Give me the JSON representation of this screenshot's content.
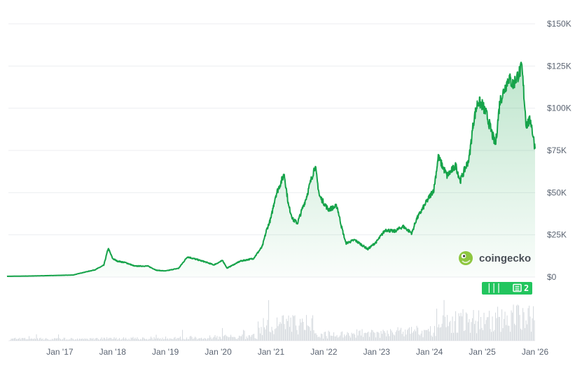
{
  "chart_data": {
    "type": "area",
    "title": "",
    "xlabel": "",
    "ylabel": "",
    "x_tick_labels": [
      "Jan '17",
      "Jan '18",
      "Jan '19",
      "Jan '20",
      "Jan '21",
      "Jan '22",
      "Jan '23",
      "Jan '24",
      "Jan '25",
      "Jan '26"
    ],
    "x_tick_years": [
      2017,
      2018,
      2019,
      2020,
      2021,
      2022,
      2023,
      2024,
      2025,
      2026
    ],
    "y_tick_labels": [
      "$0",
      "$25K",
      "$50K",
      "$75K",
      "$100K",
      "$125K",
      "$150K"
    ],
    "y_tick_values": [
      0,
      25000,
      50000,
      75000,
      100000,
      125000,
      150000
    ],
    "xlim": [
      "2016-01",
      "2026-01"
    ],
    "ylim": [
      0,
      150000
    ],
    "grid": true,
    "line_color": "#16a34a",
    "fill_color": "#16a34a",
    "series": [
      {
        "values": [
          [
            "2016-01",
            430
          ],
          [
            "2016-07",
            650
          ],
          [
            "2017-01",
            1000
          ],
          [
            "2017-04",
            1200
          ],
          [
            "2017-06",
            2500
          ],
          [
            "2017-09",
            4300
          ],
          [
            "2017-11",
            7000
          ],
          [
            "2017-12",
            17000
          ],
          [
            "2018-01",
            11000
          ],
          [
            "2018-02",
            9500
          ],
          [
            "2018-04",
            8500
          ],
          [
            "2018-06",
            6500
          ],
          [
            "2018-09",
            6500
          ],
          [
            "2018-11",
            4000
          ],
          [
            "2019-01",
            3600
          ],
          [
            "2019-04",
            5200
          ],
          [
            "2019-06",
            12000
          ],
          [
            "2019-08",
            10500
          ],
          [
            "2019-10",
            9000
          ],
          [
            "2019-12",
            7200
          ],
          [
            "2020-02",
            9800
          ],
          [
            "2020-03",
            5300
          ],
          [
            "2020-06",
            9400
          ],
          [
            "2020-09",
            11000
          ],
          [
            "2020-11",
            18000
          ],
          [
            "2020-12",
            28000
          ],
          [
            "2021-01",
            35000
          ],
          [
            "2021-02",
            48000
          ],
          [
            "2021-04",
            61000
          ],
          [
            "2021-05",
            42000
          ],
          [
            "2021-06",
            34000
          ],
          [
            "2021-07",
            32000
          ],
          [
            "2021-09",
            47000
          ],
          [
            "2021-11",
            66000
          ],
          [
            "2021-12",
            48000
          ],
          [
            "2022-02",
            40000
          ],
          [
            "2022-04",
            42000
          ],
          [
            "2022-05",
            30000
          ],
          [
            "2022-06",
            20000
          ],
          [
            "2022-08",
            22000
          ],
          [
            "2022-11",
            16500
          ],
          [
            "2023-01",
            21000
          ],
          [
            "2023-03",
            28000
          ],
          [
            "2023-05",
            27000
          ],
          [
            "2023-07",
            30000
          ],
          [
            "2023-09",
            26000
          ],
          [
            "2023-10",
            34000
          ],
          [
            "2023-12",
            43000
          ],
          [
            "2024-02",
            52000
          ],
          [
            "2024-03",
            71000
          ],
          [
            "2024-05",
            60000
          ],
          [
            "2024-07",
            66000
          ],
          [
            "2024-08",
            57000
          ],
          [
            "2024-10",
            70000
          ],
          [
            "2024-11",
            92000
          ],
          [
            "2024-12",
            104000
          ],
          [
            "2025-01",
            102000
          ],
          [
            "2025-02",
            96000
          ],
          [
            "2025-04",
            78000
          ],
          [
            "2025-05",
            104000
          ],
          [
            "2025-07",
            118000
          ],
          [
            "2025-08",
            114000
          ],
          [
            "2025-10",
            124000
          ],
          [
            "2025-11",
            90000
          ],
          [
            "2025-12",
            93000
          ],
          [
            "2026-01",
            76000
          ]
        ]
      }
    ]
  },
  "watermark": {
    "text": "coingecko",
    "icon": "gecko-icon"
  },
  "overlay_badge": {
    "icon": "newspaper-icon",
    "prefix": "⏐⏐⏐",
    "count": "2",
    "color": "#22c55e"
  }
}
